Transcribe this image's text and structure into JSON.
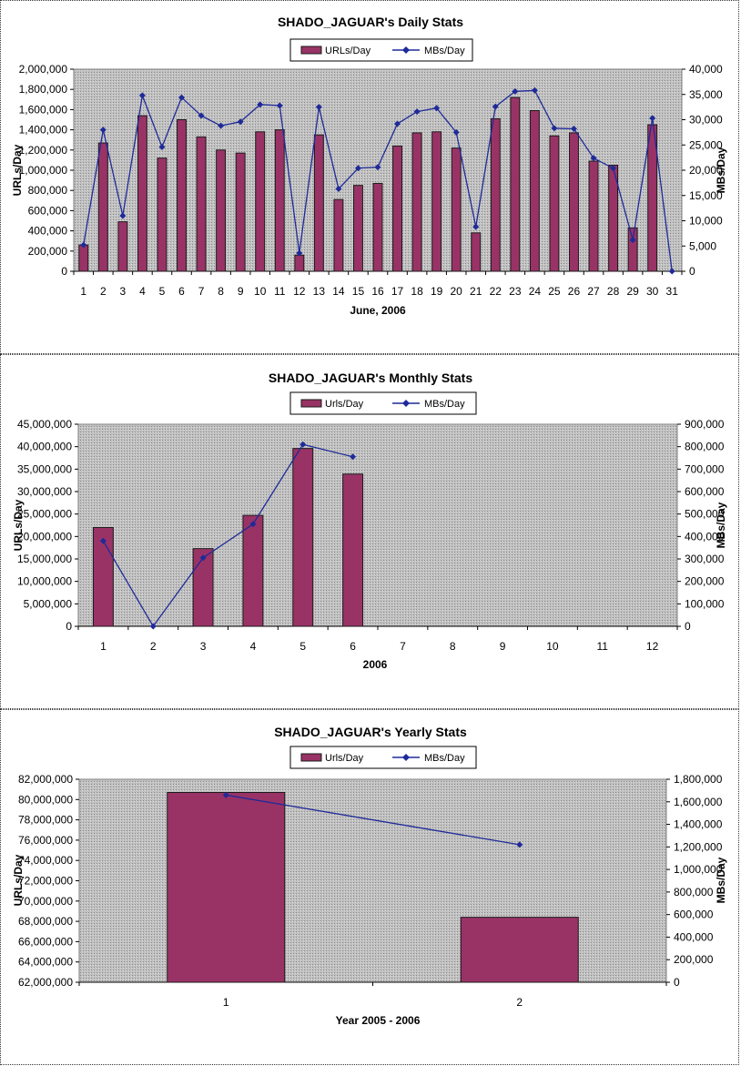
{
  "colors": {
    "bar_fill": "#993366",
    "bar_stroke": "#1a1a1a",
    "line": "#1f2a99",
    "plot_bg": "#c0c0c0"
  },
  "chart_data": [
    {
      "type": "bar",
      "title": "SHADO_JAGUAR's Daily Stats",
      "xlabel": "June, 2006",
      "ylabel": "URLs/Day",
      "y2label": "MBs/Day",
      "legend_position": "top-center",
      "grid": false,
      "categories": [
        "1",
        "2",
        "3",
        "4",
        "5",
        "6",
        "7",
        "8",
        "9",
        "10",
        "11",
        "12",
        "13",
        "14",
        "15",
        "16",
        "17",
        "18",
        "19",
        "20",
        "21",
        "22",
        "23",
        "24",
        "25",
        "26",
        "27",
        "28",
        "29",
        "30",
        "31"
      ],
      "ylim": [
        0,
        2000000
      ],
      "y_ticks": [
        "0",
        "200,000",
        "400,000",
        "600,000",
        "800,000",
        "1,000,000",
        "1,200,000",
        "1,400,000",
        "1,600,000",
        "1,800,000",
        "2,000,000"
      ],
      "y2lim": [
        0,
        40000
      ],
      "y2_ticks": [
        "0",
        "5,000",
        "10,000",
        "15,000",
        "20,000",
        "25,000",
        "30,000",
        "35,000",
        "40,000"
      ],
      "series": [
        {
          "name": "URLs/Day",
          "type": "bar",
          "axis": "left",
          "values": [
            260000,
            1270000,
            490000,
            1540000,
            1120000,
            1500000,
            1330000,
            1200000,
            1170000,
            1380000,
            1400000,
            160000,
            1350000,
            710000,
            850000,
            870000,
            1240000,
            1370000,
            1380000,
            1220000,
            380000,
            1510000,
            1720000,
            1590000,
            1340000,
            1370000,
            1090000,
            1050000,
            430000,
            1450000,
            0
          ]
        },
        {
          "name": "MBs/Day",
          "type": "line",
          "axis": "right",
          "values": [
            5200,
            28000,
            11000,
            34800,
            24600,
            34400,
            30800,
            28800,
            29600,
            33000,
            32800,
            3600,
            32500,
            16300,
            20400,
            20600,
            29200,
            31600,
            32300,
            27500,
            8800,
            32600,
            35600,
            35800,
            28300,
            28200,
            22400,
            20400,
            6200,
            30300,
            0
          ]
        }
      ]
    },
    {
      "type": "bar",
      "title": "SHADO_JAGUAR's Monthly Stats",
      "xlabel": "2006",
      "ylabel": "URLs/Day",
      "y2label": "MBs/Day",
      "legend_position": "top-center",
      "grid": false,
      "categories": [
        "1",
        "2",
        "3",
        "4",
        "5",
        "6",
        "7",
        "8",
        "9",
        "10",
        "11",
        "12"
      ],
      "ylim": [
        0,
        45000000
      ],
      "y_ticks": [
        "0",
        "5,000,000",
        "10,000,000",
        "15,000,000",
        "20,000,000",
        "25,000,000",
        "30,000,000",
        "35,000,000",
        "40,000,000",
        "45,000,000"
      ],
      "y2lim": [
        0,
        900000
      ],
      "y2_ticks": [
        "0",
        "100,000",
        "200,000",
        "300,000",
        "400,000",
        "500,000",
        "600,000",
        "700,000",
        "800,000",
        "900,000"
      ],
      "series": [
        {
          "name": "Urls/Day",
          "type": "bar",
          "axis": "left",
          "values": [
            22000000,
            null,
            17300000,
            24700000,
            39600000,
            33900000,
            null,
            null,
            null,
            null,
            null,
            null
          ]
        },
        {
          "name": "MBs/Day",
          "type": "line",
          "axis": "right",
          "values": [
            380000,
            0,
            305000,
            455000,
            810000,
            755000,
            null,
            null,
            null,
            null,
            null,
            null
          ]
        }
      ]
    },
    {
      "type": "bar",
      "title": "SHADO_JAGUAR's Yearly Stats",
      "xlabel": "Year 2005 - 2006",
      "ylabel": "URLs/Day",
      "y2label": "MBs/Day",
      "legend_position": "top-center",
      "grid": false,
      "categories": [
        "1",
        "2"
      ],
      "ylim": [
        62000000,
        82000000
      ],
      "y_ticks": [
        "62,000,000",
        "64,000,000",
        "66,000,000",
        "68,000,000",
        "70,000,000",
        "72,000,000",
        "74,000,000",
        "76,000,000",
        "78,000,000",
        "80,000,000",
        "82,000,000"
      ],
      "y2lim": [
        0,
        1800000
      ],
      "y2_ticks": [
        "0",
        "200,000",
        "400,000",
        "600,000",
        "800,000",
        "1,000,000",
        "1,200,000",
        "1,400,000",
        "1,600,000",
        "1,800,000"
      ],
      "series": [
        {
          "name": "Urls/Day",
          "type": "bar",
          "axis": "left",
          "values": [
            80700000,
            68400000
          ]
        },
        {
          "name": "MBs/Day",
          "type": "line",
          "axis": "right",
          "values": [
            1660000,
            1220000
          ]
        }
      ]
    }
  ]
}
